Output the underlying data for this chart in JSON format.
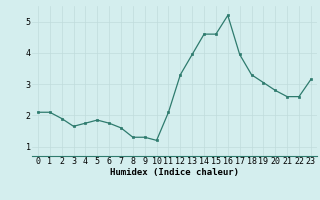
{
  "x": [
    0,
    1,
    2,
    3,
    4,
    5,
    6,
    7,
    8,
    9,
    10,
    11,
    12,
    13,
    14,
    15,
    16,
    17,
    18,
    19,
    20,
    21,
    22,
    23
  ],
  "y": [
    2.1,
    2.1,
    1.9,
    1.65,
    1.75,
    1.85,
    1.75,
    1.6,
    1.3,
    1.3,
    1.2,
    2.1,
    3.3,
    3.95,
    4.6,
    4.6,
    5.2,
    3.95,
    3.3,
    3.05,
    2.8,
    2.6,
    2.6,
    3.15
  ],
  "xlabel": "Humidex (Indice chaleur)",
  "ylim": [
    0.7,
    5.5
  ],
  "xlim": [
    -0.5,
    23.5
  ],
  "yticks": [
    1,
    2,
    3,
    4,
    5
  ],
  "xticks": [
    0,
    1,
    2,
    3,
    4,
    5,
    6,
    7,
    8,
    9,
    10,
    11,
    12,
    13,
    14,
    15,
    16,
    17,
    18,
    19,
    20,
    21,
    22,
    23
  ],
  "line_color": "#2e7b6e",
  "marker_color": "#2e7b6e",
  "bg_color": "#d4eeee",
  "grid_color": "#c0dcdc",
  "xlabel_fontsize": 6.5,
  "axis_tick_fontsize": 6.0
}
